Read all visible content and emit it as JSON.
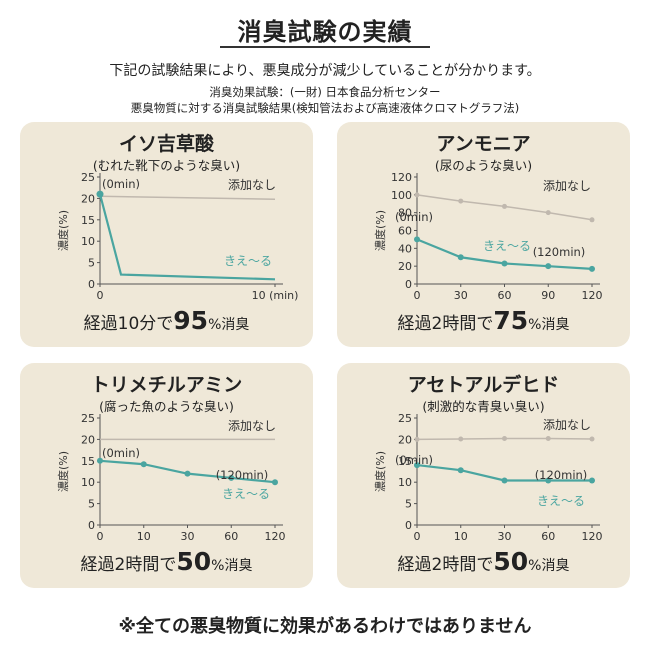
{
  "header": {
    "title": "消臭試験の実績",
    "intro": "下記の試験結果により、悪臭成分が減少していることが分かります。",
    "source_line1": "消臭効果試験：(一財) 日本食品分析センター",
    "source_line2": "悪臭物質に対する消臭試験結果(検知管法および高速液体クロマトグラフ法)"
  },
  "footer": {
    "note": "※全ての悪臭物質に効果があるわけではありません"
  },
  "colors": {
    "background": "#ffffff",
    "card": "#efe8d8",
    "treated": "#4aa5a0",
    "untreated": "#c0b8ae",
    "axis": "#555555"
  },
  "chart_data": [
    {
      "type": "line",
      "title": "イソ吉草酸",
      "subtitle": "(むれた靴下のような臭い)",
      "ylabel": "濃度(%)",
      "x_unit": "(min)",
      "x_ticks": [
        0,
        10
      ],
      "x_tick_labels": [
        "0",
        "10 (min)"
      ],
      "y_ticks": [
        0,
        5,
        10,
        15,
        20,
        25
      ],
      "xlim": [
        0,
        10
      ],
      "ylim": [
        0,
        25
      ],
      "series": [
        {
          "name": "添加なし",
          "x": [
            0,
            10
          ],
          "y": [
            20.5,
            19.8
          ],
          "markers": false
        },
        {
          "name": "きえ〜る",
          "x": [
            0,
            1.2,
            10
          ],
          "y": [
            21,
            2.2,
            1.1
          ],
          "markers": false
        }
      ],
      "annotations": {
        "start": "(0min)"
      },
      "result": {
        "prefix": "経過10分で",
        "value": "95",
        "suffix": "%消臭"
      }
    },
    {
      "type": "line",
      "title": "アンモニア",
      "subtitle": "(尿のような臭い)",
      "ylabel": "濃度(%)",
      "x_ticks": [
        0,
        30,
        60,
        90,
        120
      ],
      "x_tick_labels": [
        "0",
        "30",
        "60",
        "90",
        "120"
      ],
      "y_ticks": [
        0,
        20,
        40,
        60,
        80,
        100,
        120
      ],
      "xlim": [
        0,
        120
      ],
      "ylim": [
        0,
        120
      ],
      "series": [
        {
          "name": "添加なし",
          "x": [
            0,
            30,
            60,
            90,
            120
          ],
          "y": [
            100,
            93,
            87,
            80,
            72
          ],
          "markers": true
        },
        {
          "name": "きえ〜る",
          "x": [
            0,
            30,
            60,
            90,
            120
          ],
          "y": [
            50,
            30,
            23,
            20,
            17
          ],
          "markers": true
        }
      ],
      "annotations": {
        "start": "(0min)",
        "end": "(120min)"
      },
      "result": {
        "prefix": "経過2時間で",
        "value": "75",
        "suffix": "%消臭"
      }
    },
    {
      "type": "line",
      "title": "トリメチルアミン",
      "subtitle": "(腐った魚のような臭い)",
      "ylabel": "濃度(%)",
      "x_ticks": [
        0,
        10,
        30,
        60,
        120
      ],
      "x_tick_labels": [
        "0",
        "10",
        "30",
        "60",
        "120"
      ],
      "y_ticks": [
        0,
        5,
        10,
        15,
        20,
        25
      ],
      "xlim": [
        0,
        4
      ],
      "ylim": [
        0,
        25
      ],
      "series": [
        {
          "name": "添加なし",
          "x": [
            0,
            1,
            2,
            3,
            4
          ],
          "y": [
            20,
            20,
            20,
            20,
            20
          ],
          "markers": false
        },
        {
          "name": "きえ〜る",
          "x": [
            0,
            1,
            2,
            3,
            4
          ],
          "y": [
            15,
            14.2,
            12,
            11,
            10
          ],
          "markers": true
        }
      ],
      "annotations": {
        "start": "(0min)",
        "end": "(120min)"
      },
      "result": {
        "prefix": "経過2時間で",
        "value": "50",
        "suffix": "%消臭"
      }
    },
    {
      "type": "line",
      "title": "アセトアルデヒド",
      "subtitle": "(刺激的な青臭い臭い)",
      "ylabel": "濃度(%)",
      "x_ticks": [
        0,
        10,
        30,
        60,
        120
      ],
      "x_tick_labels": [
        "0",
        "10",
        "30",
        "60",
        "120"
      ],
      "y_ticks": [
        0,
        5,
        10,
        15,
        20,
        25
      ],
      "xlim": [
        0,
        4
      ],
      "ylim": [
        0,
        25
      ],
      "series": [
        {
          "name": "添加なし",
          "x": [
            0,
            1,
            2,
            3,
            4
          ],
          "y": [
            20,
            20.1,
            20.2,
            20.2,
            20.1
          ],
          "markers": true
        },
        {
          "name": "きえ〜る",
          "x": [
            0,
            1,
            2,
            3,
            4
          ],
          "y": [
            14,
            12.8,
            10.4,
            10.4,
            10.4
          ],
          "markers": true
        }
      ],
      "annotations": {
        "start": "(0min)",
        "end": "(120min)"
      },
      "result": {
        "prefix": "経過2時間で",
        "value": "50",
        "suffix": "%消臭"
      }
    }
  ]
}
